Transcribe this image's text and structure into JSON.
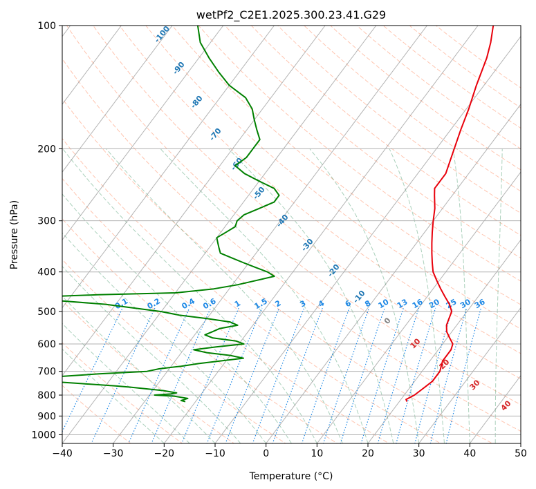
{
  "chart_data": {
    "type": "line",
    "title": "wetPf2_C2E1.2025.300.23.41.G29",
    "xlabel": "Temperature (°C)",
    "ylabel": "Pressure (hPa)",
    "xlim": [
      -40,
      50
    ],
    "ylim": [
      1050,
      100
    ],
    "y_scale": "log",
    "x_ticks": [
      "−40",
      "−30",
      "−20",
      "−10",
      "0",
      "10",
      "20",
      "30",
      "40",
      "50"
    ],
    "x_tick_values": [
      -40,
      -30,
      -20,
      -10,
      0,
      10,
      20,
      30,
      40,
      50
    ],
    "y_ticks": [
      "1000",
      "900",
      "800",
      "700",
      "600",
      "500",
      "400",
      "300",
      "200",
      "100"
    ],
    "y_tick_values": [
      1000,
      900,
      800,
      700,
      600,
      500,
      400,
      300,
      200,
      100
    ],
    "grid": true,
    "colors": {
      "temperature": "#e8000b",
      "dewpoint": "#008000",
      "isotherm": "#808080",
      "dry_adiabat": "#ff7f50",
      "moist_adiabat": "#2e8b57",
      "mixing_ratio": "#1e88e5",
      "lcl_label": "#1f77b4",
      "isotherm_warm_label": "#d62728"
    },
    "isotherm_labels_cold": [
      "-100",
      "-90",
      "-80",
      "-70",
      "-60",
      "-50",
      "-40",
      "-30",
      "-20",
      "-10"
    ],
    "isotherm_label_zero": "0",
    "isotherm_labels_warm": [
      "10",
      "20",
      "30",
      "40"
    ],
    "mixing_ratio_labels": [
      "0.1",
      "0.2",
      "0.4",
      "0.6",
      "1",
      "1.5",
      "2",
      "3",
      "4",
      "6",
      "8",
      "10",
      "13",
      "16",
      "20",
      "25",
      "30",
      "36"
    ],
    "series": [
      {
        "name": "temperature",
        "points": [
          [
            830,
            21.5
          ],
          [
            820,
            21
          ],
          [
            810,
            21.5
          ],
          [
            800,
            22
          ],
          [
            780,
            22.5
          ],
          [
            760,
            23
          ],
          [
            740,
            23.5
          ],
          [
            720,
            23.5
          ],
          [
            700,
            23.5
          ],
          [
            680,
            23
          ],
          [
            660,
            22.5
          ],
          [
            640,
            22.5
          ],
          [
            620,
            22.5
          ],
          [
            600,
            22
          ],
          [
            580,
            20.5
          ],
          [
            560,
            19
          ],
          [
            540,
            18
          ],
          [
            520,
            17.5
          ],
          [
            500,
            17
          ],
          [
            480,
            15.5
          ],
          [
            460,
            13.5
          ],
          [
            440,
            11.5
          ],
          [
            420,
            9.5
          ],
          [
            400,
            7.5
          ],
          [
            380,
            6
          ],
          [
            360,
            4.5
          ],
          [
            340,
            3
          ],
          [
            320,
            1.5
          ],
          [
            300,
            0
          ],
          [
            280,
            -1.5
          ],
          [
            260,
            -3.5
          ],
          [
            250,
            -4.5
          ],
          [
            230,
            -4.5
          ],
          [
            200,
            -6.5
          ],
          [
            180,
            -8
          ],
          [
            160,
            -9.5
          ],
          [
            140,
            -11.5
          ],
          [
            120,
            -13.5
          ],
          [
            110,
            -15
          ],
          [
            100,
            -17
          ]
        ]
      },
      {
        "name": "dewpoint",
        "points": [
          [
            830,
            -22
          ],
          [
            825,
            -23
          ],
          [
            815,
            -22
          ],
          [
            805,
            -25
          ],
          [
            800,
            -29
          ],
          [
            795,
            -26
          ],
          [
            790,
            -25
          ],
          [
            780,
            -28
          ],
          [
            765,
            -35
          ],
          [
            760,
            -38
          ],
          [
            750,
            -45
          ],
          [
            740,
            -52
          ],
          [
            730,
            -55
          ],
          [
            720,
            -50
          ],
          [
            710,
            -43
          ],
          [
            700,
            -34
          ],
          [
            690,
            -32
          ],
          [
            680,
            -28
          ],
          [
            670,
            -25
          ],
          [
            650,
            -17
          ],
          [
            640,
            -20
          ],
          [
            630,
            -25
          ],
          [
            620,
            -28
          ],
          [
            610,
            -24
          ],
          [
            600,
            -19
          ],
          [
            590,
            -21
          ],
          [
            580,
            -26
          ],
          [
            570,
            -28
          ],
          [
            560,
            -27
          ],
          [
            550,
            -26
          ],
          [
            540,
            -23
          ],
          [
            530,
            -25
          ],
          [
            520,
            -30
          ],
          [
            510,
            -36
          ],
          [
            500,
            -40
          ],
          [
            490,
            -46
          ],
          [
            480,
            -52
          ],
          [
            470,
            -62
          ],
          [
            460,
            -65
          ],
          [
            455,
            -55
          ],
          [
            450,
            -40
          ],
          [
            440,
            -33
          ],
          [
            430,
            -29
          ],
          [
            420,
            -26
          ],
          [
            410,
            -23
          ],
          [
            400,
            -25
          ],
          [
            390,
            -28
          ],
          [
            380,
            -31
          ],
          [
            370,
            -34
          ],
          [
            360,
            -37
          ],
          [
            350,
            -38
          ],
          [
            340,
            -39
          ],
          [
            330,
            -40
          ],
          [
            320,
            -39
          ],
          [
            310,
            -38
          ],
          [
            300,
            -38.5
          ],
          [
            290,
            -38
          ],
          [
            280,
            -36
          ],
          [
            270,
            -34
          ],
          [
            260,
            -34
          ],
          [
            250,
            -36
          ],
          [
            240,
            -40
          ],
          [
            230,
            -44
          ],
          [
            220,
            -47
          ],
          [
            210,
            -46
          ],
          [
            200,
            -46
          ],
          [
            190,
            -46
          ],
          [
            180,
            -48
          ],
          [
            170,
            -50
          ],
          [
            160,
            -52
          ],
          [
            150,
            -55
          ],
          [
            140,
            -60
          ],
          [
            130,
            -64
          ],
          [
            120,
            -68
          ],
          [
            110,
            -72
          ],
          [
            100,
            -75
          ]
        ]
      }
    ]
  }
}
